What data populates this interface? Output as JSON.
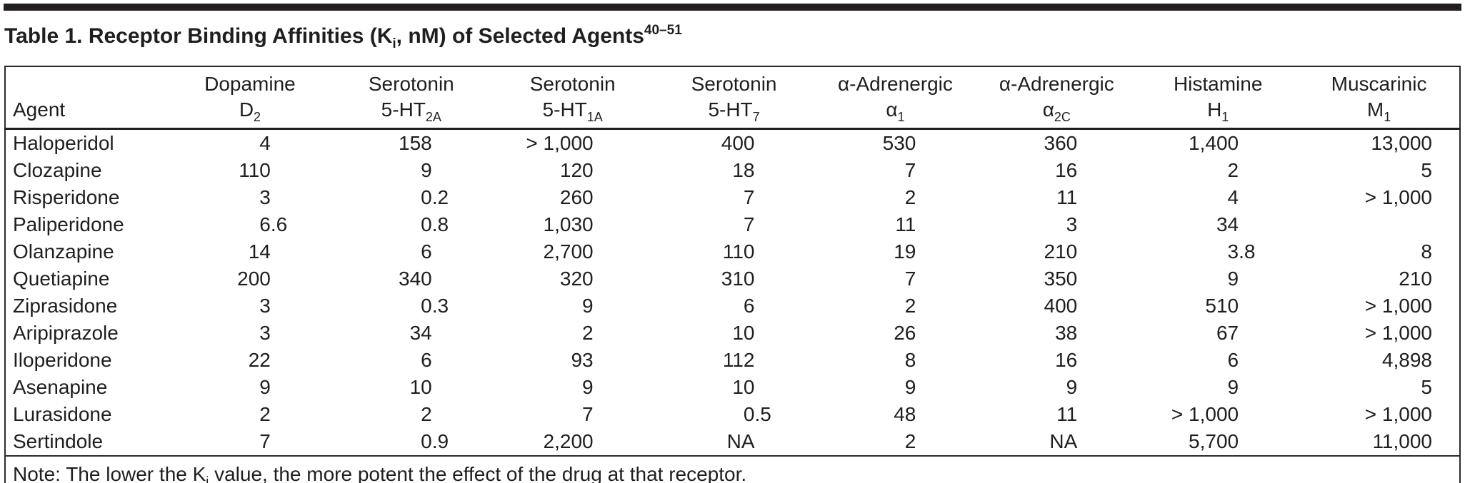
{
  "title": {
    "label": "Table 1.",
    "text_pre": " Receptor Binding Affinities (K",
    "k_sub": "i",
    "text_post": ", nM) of Selected Agents",
    "citation": "40–51"
  },
  "table": {
    "columns": [
      {
        "id": "agent",
        "top": "",
        "main": "Agent",
        "sub": ""
      },
      {
        "id": "dopamine-d2",
        "top": "Dopamine",
        "main": "D",
        "sub": "2"
      },
      {
        "id": "serotonin-5ht2a",
        "top": "Serotonin",
        "main": "5-HT",
        "sub": "2A"
      },
      {
        "id": "serotonin-5ht1a",
        "top": "Serotonin",
        "main": "5-HT",
        "sub": "1A"
      },
      {
        "id": "serotonin-5ht7",
        "top": "Serotonin",
        "main": "5-HT",
        "sub": "7"
      },
      {
        "id": "alpha1-adrenergic",
        "top": "α-Adrenergic",
        "main": "α",
        "sub": "1"
      },
      {
        "id": "alpha2c-adrenergic",
        "top": "α-Adrenergic",
        "main": "α",
        "sub": "2C"
      },
      {
        "id": "histamine-h1",
        "top": "Histamine",
        "main": "H",
        "sub": "1"
      },
      {
        "id": "muscarinic-m1",
        "top": "Muscarinic",
        "main": "M",
        "sub": "1"
      }
    ],
    "rows": [
      {
        "agent": "Haloperidol",
        "values": [
          "4",
          "158",
          "> 1,000",
          "400",
          "530",
          "360",
          "1,400",
          "13,000"
        ]
      },
      {
        "agent": "Clozapine",
        "values": [
          "110",
          "9",
          "120",
          "18",
          "7",
          "16",
          "2",
          "5"
        ]
      },
      {
        "agent": "Risperidone",
        "values": [
          "3",
          "0.2",
          "260",
          "7",
          "2",
          "11",
          "4",
          "> 1,000"
        ]
      },
      {
        "agent": "Paliperidone",
        "values": [
          "6.6",
          "0.8",
          "1,030",
          "7",
          "11",
          "3",
          "34",
          ""
        ]
      },
      {
        "agent": "Olanzapine",
        "values": [
          "14",
          "6",
          "2,700",
          "110",
          "19",
          "210",
          "3.8",
          "8"
        ]
      },
      {
        "agent": "Quetiapine",
        "values": [
          "200",
          "340",
          "320",
          "310",
          "7",
          "350",
          "9",
          "210"
        ]
      },
      {
        "agent": "Ziprasidone",
        "values": [
          "3",
          "0.3",
          "9",
          "6",
          "2",
          "400",
          "510",
          "> 1,000"
        ]
      },
      {
        "agent": "Aripiprazole",
        "values": [
          "3",
          "34",
          "2",
          "10",
          "26",
          "38",
          "67",
          "> 1,000"
        ]
      },
      {
        "agent": "Iloperidone",
        "values": [
          "22",
          "6",
          "93",
          "112",
          "8",
          "16",
          "6",
          "4,898"
        ]
      },
      {
        "agent": "Asenapine",
        "values": [
          "9",
          "10",
          "9",
          "10",
          "9",
          "9",
          "9",
          "5"
        ]
      },
      {
        "agent": "Lurasidone",
        "values": [
          "2",
          "2",
          "7",
          "0.5",
          "48",
          "11",
          "> 1,000",
          "> 1,000"
        ]
      },
      {
        "agent": "Sertindole",
        "values": [
          "7",
          "0.9",
          "2,200",
          "NA",
          "2",
          "NA",
          "5,700",
          "11,000"
        ]
      }
    ]
  },
  "note": {
    "pre": "Note: The lower the K",
    "k_sub": "i",
    "post": " value, the more potent the effect of the drug at that receptor."
  },
  "colors": {
    "top_rule": "#231f20",
    "table_border": "#2b2b2b",
    "text": "#1f1f1f",
    "background": "#ffffff"
  }
}
